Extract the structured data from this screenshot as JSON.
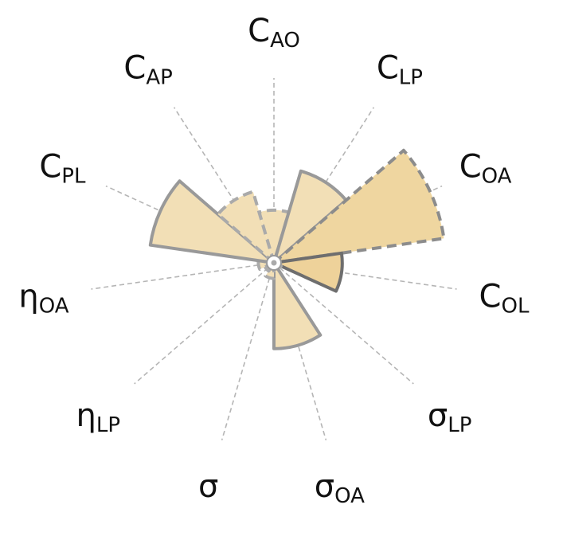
{
  "chart_data": {
    "type": "polar_bar",
    "axes": [
      {
        "main": "C",
        "sub": "AO"
      },
      {
        "main": "C",
        "sub": "LP"
      },
      {
        "main": "C",
        "sub": "OA"
      },
      {
        "main": "C",
        "sub": "OL"
      },
      {
        "main": "σ",
        "sub": "LP"
      },
      {
        "main": "σ",
        "sub": "OA"
      },
      {
        "main": "σ",
        "sub": ""
      },
      {
        "main": "η",
        "sub": "LP"
      },
      {
        "main": "η",
        "sub": "OA"
      },
      {
        "main": "C",
        "sub": "PL"
      },
      {
        "main": "C",
        "sub": "AP"
      }
    ],
    "values": [
      0.27,
      0.49,
      0.88,
      0.35,
      0.04,
      0.44,
      0.08,
      0.05,
      0.08,
      0.64,
      0.38
    ],
    "outline": [
      "dashed",
      "solid",
      "dashed",
      "solid",
      "dashed",
      "solid",
      "dashed",
      "solid",
      "dashed",
      "solid",
      "dashed"
    ],
    "fill": [
      "#f2dfb6",
      "#f2dfb6",
      "#efd6a0",
      "#eed29a",
      "#f2dfb6",
      "#f2dfb6",
      "#f2dfb6",
      "#f2dfb6",
      "#f2dfb6",
      "#f2dfb6",
      "#f2dfb6"
    ],
    "edge": [
      "#aaaaaa",
      "#999999",
      "#8c8c8c",
      "#6e6e6e",
      "#aaaaaa",
      "#999999",
      "#aaaaaa",
      "#aaaaaa",
      "#aaaaaa",
      "#999999",
      "#aaaaaa"
    ],
    "rmax": 1.0,
    "grid": true,
    "grid_color": "#b5b5b5",
    "direction": "clockwise",
    "first_axis": "top"
  }
}
